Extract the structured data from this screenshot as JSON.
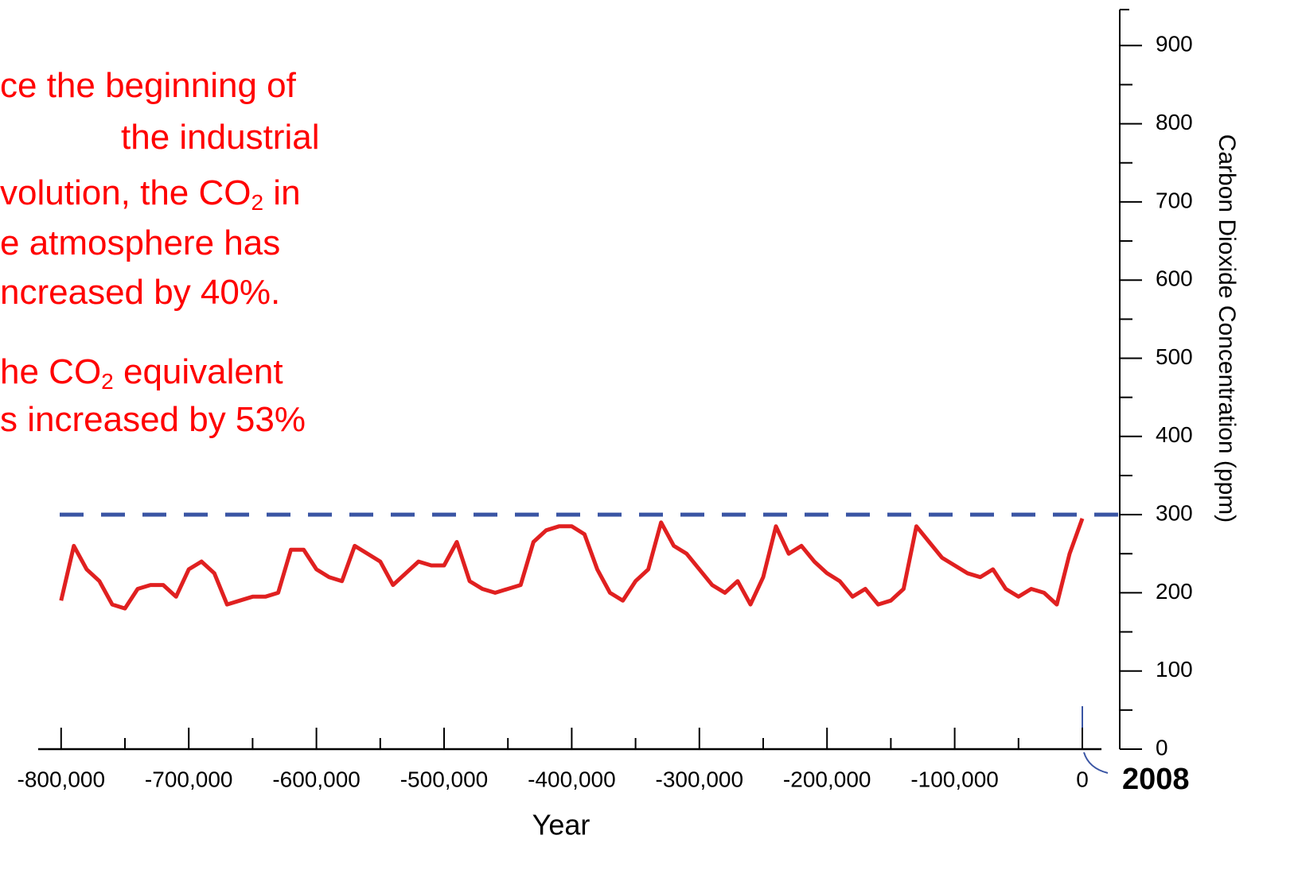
{
  "chart_data": {
    "type": "line",
    "annotations": [
      [
        "ce the beginning of"
      ],
      [
        "the industrial"
      ],
      [
        "volution, the CO",
        "2",
        " in"
      ],
      [
        "e atmosphere has"
      ],
      [
        "ncreased by 40%."
      ],
      [
        "he CO",
        "2",
        " equivalent"
      ],
      [
        "s increased by 53%"
      ]
    ],
    "annotation_color": "#ff0000",
    "x_label": "Year",
    "y_label": "Carbon Dioxide Concentration (ppm)",
    "end_label": "2008",
    "xlim": [
      -818000,
      15000
    ],
    "ylim": [
      0,
      946
    ],
    "xticks": [
      {
        "value": -800000,
        "label": "-800,000"
      },
      {
        "value": -700000,
        "label": "-700,000"
      },
      {
        "value": -600000,
        "label": "-600,000"
      },
      {
        "value": -500000,
        "label": "-500,000"
      },
      {
        "value": -400000,
        "label": "-400,000"
      },
      {
        "value": -300000,
        "label": "-300,000"
      },
      {
        "value": -200000,
        "label": "-200,000"
      },
      {
        "value": -100000,
        "label": "-100,000"
      },
      0
    ],
    "x_minor_ticks": [
      -750000,
      -650000,
      -550000,
      -450000,
      -350000,
      -250000,
      -150000,
      -50000
    ],
    "yticks": [
      0,
      100,
      200,
      300,
      400,
      500,
      600,
      700,
      800,
      900
    ],
    "y_minor_ticks": [
      50,
      150,
      250,
      350,
      450,
      550,
      650,
      750,
      850
    ],
    "reference_line": {
      "value": 300,
      "color": "#3a55a4"
    },
    "x": [
      -800000,
      -790000,
      -780000,
      -770000,
      -760000,
      -750000,
      -740000,
      -730000,
      -720000,
      -710000,
      -700000,
      -690000,
      -680000,
      -670000,
      -660000,
      -650000,
      -640000,
      -630000,
      -620000,
      -610000,
      -600000,
      -590000,
      -580000,
      -570000,
      -560000,
      -550000,
      -540000,
      -530000,
      -520000,
      -510000,
      -500000,
      -490000,
      -480000,
      -470000,
      -460000,
      -450000,
      -440000,
      -430000,
      -420000,
      -410000,
      -400000,
      -390000,
      -380000,
      -370000,
      -360000,
      -350000,
      -340000,
      -330000,
      -320000,
      -310000,
      -300000,
      -290000,
      -280000,
      -270000,
      -260000,
      -250000,
      -240000,
      -230000,
      -220000,
      -210000,
      -200000,
      -190000,
      -180000,
      -170000,
      -160000,
      -150000,
      -140000,
      -130000,
      -120000,
      -110000,
      -100000,
      -90000,
      -80000,
      -70000,
      -60000,
      -50000,
      -40000,
      -30000,
      -20000,
      -10000,
      0
    ],
    "series": [
      {
        "name": "CO2",
        "color": "#e02020",
        "values": [
          190,
          260,
          230,
          215,
          185,
          180,
          205,
          210,
          210,
          195,
          230,
          240,
          225,
          185,
          190,
          195,
          195,
          200,
          255,
          255,
          230,
          220,
          215,
          260,
          250,
          240,
          210,
          225,
          240,
          235,
          235,
          265,
          215,
          205,
          200,
          205,
          210,
          265,
          280,
          285,
          285,
          275,
          230,
          200,
          190,
          215,
          230,
          290,
          260,
          250,
          230,
          210,
          200,
          215,
          185,
          220,
          285,
          250,
          260,
          240,
          225,
          215,
          195,
          205,
          185,
          190,
          205,
          285,
          265,
          245,
          235,
          225,
          220,
          230,
          205,
          195,
          205,
          200,
          185,
          250,
          295
        ]
      }
    ]
  }
}
